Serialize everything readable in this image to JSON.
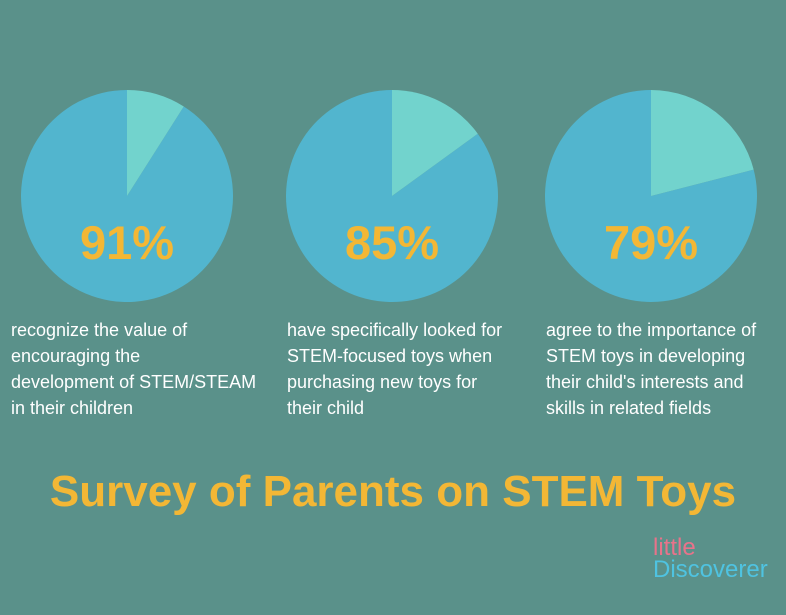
{
  "colors": {
    "background": "#5a918a",
    "pie_main": "#52b5ce",
    "pie_slice": "#72d3cd",
    "accent": "#f3b735",
    "text": "#ffffff",
    "logo_little": "#e8738a",
    "logo_discoverer": "#4fc3e1"
  },
  "title": "Survey of Parents on STEM Toys",
  "chart_data": [
    {
      "type": "pie",
      "values": [
        91,
        9
      ],
      "value_label": "91%",
      "description_lines": [
        "recognize the value of",
        "encouraging the",
        "development of STEM/STEAM",
        "in their children"
      ]
    },
    {
      "type": "pie",
      "values": [
        85,
        15
      ],
      "value_label": "85%",
      "description_lines": [
        "have specifically looked for",
        "STEM-focused toys when",
        "purchasing new toys for",
        "their child"
      ]
    },
    {
      "type": "pie",
      "values": [
        79,
        21
      ],
      "value_label": "79%",
      "description_lines": [
        "agree to the importance of",
        "STEM toys in developing",
        "their child's interests and",
        "skills in related fields"
      ]
    }
  ],
  "logo": {
    "line1": "little",
    "line2": "Discoverer"
  }
}
